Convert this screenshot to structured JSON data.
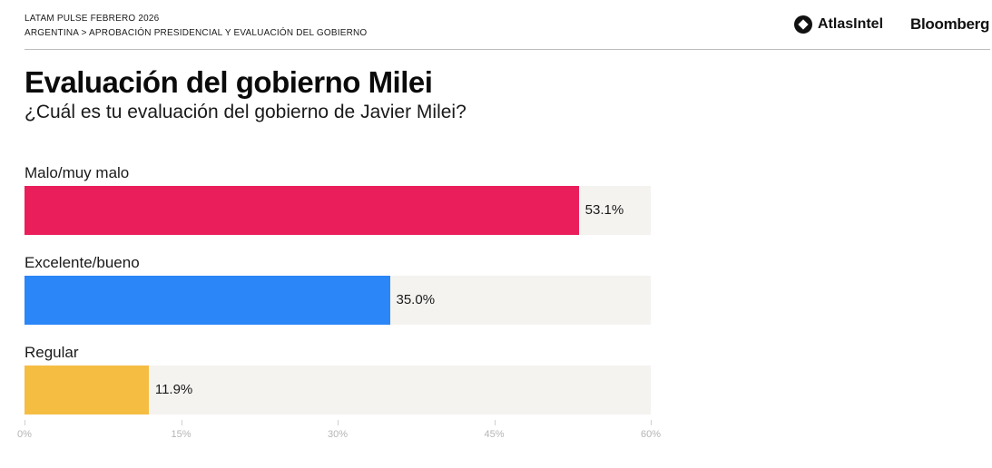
{
  "header": {
    "line1": "LATAM PULSE FEBRERO 2026",
    "line2": "ARGENTINA > APROBACIÓN PRESIDENCIAL Y EVALUACIÓN DEL GOBIERNO",
    "logo_atlas": "AtlasIntel",
    "logo_bloomberg": "Bloomberg"
  },
  "chart_data": {
    "type": "bar",
    "orientation": "horizontal",
    "title": "Evaluación del gobierno Milei",
    "subtitle": "¿Cuál es tu evaluación del gobierno de Javier Milei?",
    "categories": [
      "Malo/muy malo",
      "Excelente/bueno",
      "Regular"
    ],
    "values": [
      53.1,
      35.0,
      11.9
    ],
    "value_labels": [
      "53.1%",
      "35.0%",
      "11.9%"
    ],
    "colors": [
      "#e91e5a",
      "#2b86f7",
      "#f5bd42"
    ],
    "track_color": "#f4f3f0",
    "xlim": [
      0,
      60
    ],
    "xticks": [
      0,
      15,
      30,
      45,
      60
    ],
    "xtick_labels": [
      "0%",
      "15%",
      "30%",
      "45%",
      "60%"
    ],
    "grid": false,
    "legend": "none"
  }
}
